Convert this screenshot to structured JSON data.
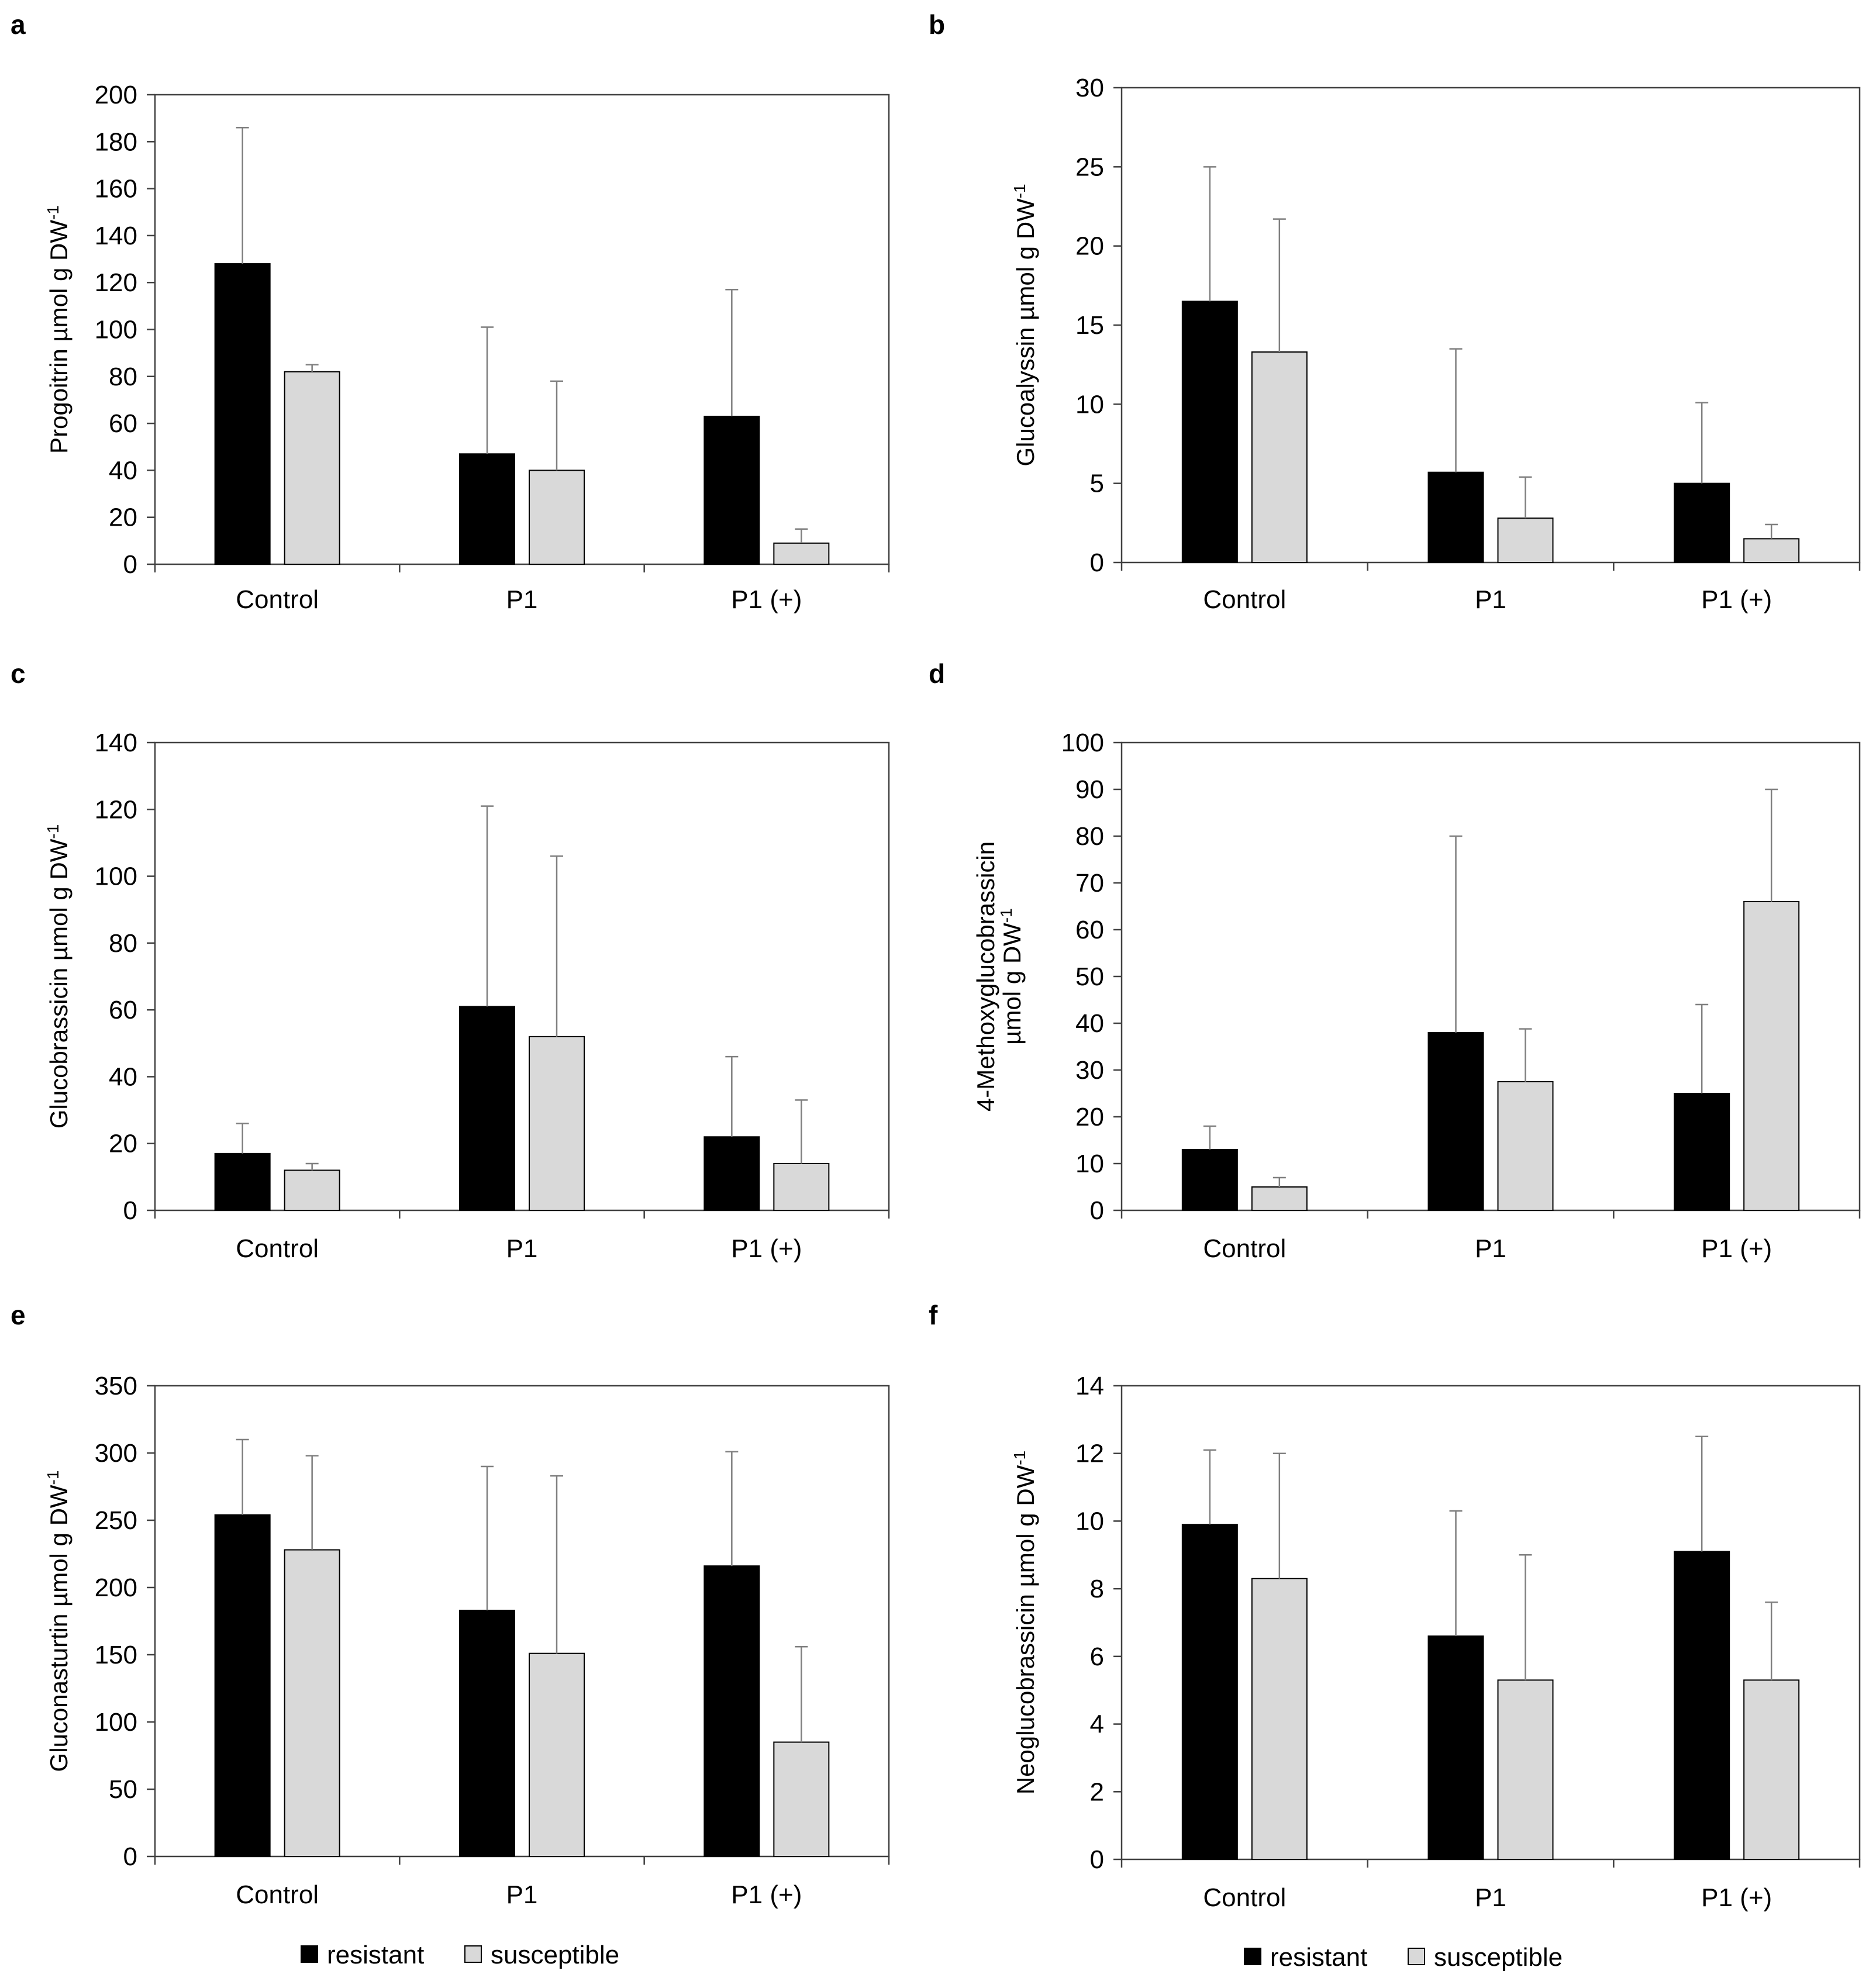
{
  "legend": {
    "items": [
      "resistant",
      "susceptible"
    ]
  },
  "colors": {
    "resistant": "#000000",
    "susceptible": "#d9d9d9",
    "axis": "#404040",
    "error_bar": "#7f7f7f"
  },
  "chart_data": [
    {
      "type": "bar",
      "panel": "a",
      "categories": [
        "Control",
        "P1",
        "P1 (+)"
      ],
      "series": [
        {
          "name": "resistant",
          "values": [
            128,
            47,
            63
          ],
          "errors": [
            58,
            54,
            54
          ]
        },
        {
          "name": "susceptible",
          "values": [
            82,
            40,
            9
          ],
          "errors": [
            3,
            38,
            6
          ]
        }
      ],
      "ylabel": "Progoitrin µmol g DW",
      "ylabel_sup": "-1",
      "ylim": [
        0,
        200
      ],
      "yticks": [
        0,
        20,
        40,
        60,
        80,
        100,
        120,
        140,
        160,
        180,
        200
      ]
    },
    {
      "type": "bar",
      "panel": "b",
      "categories": [
        "Control",
        "P1",
        "P1 (+)"
      ],
      "series": [
        {
          "name": "resistant",
          "values": [
            16.5,
            5.7,
            5.0
          ],
          "errors": [
            8.5,
            7.8,
            5.1
          ]
        },
        {
          "name": "susceptible",
          "values": [
            13.3,
            2.8,
            1.5
          ],
          "errors": [
            8.4,
            2.6,
            0.9
          ]
        }
      ],
      "ylabel": "Glucoalyssin µmol g DW",
      "ylabel_sup": "-1",
      "ylim": [
        0,
        30
      ],
      "yticks": [
        0,
        5,
        10,
        15,
        20,
        25,
        30
      ]
    },
    {
      "type": "bar",
      "panel": "c",
      "categories": [
        "Control",
        "P1",
        "P1 (+)"
      ],
      "series": [
        {
          "name": "resistant",
          "values": [
            17,
            61,
            22
          ],
          "errors": [
            9,
            60,
            24
          ]
        },
        {
          "name": "susceptible",
          "values": [
            12,
            52,
            14
          ],
          "errors": [
            2,
            54,
            19
          ]
        }
      ],
      "ylabel": "Glucobrassicin µmol g DW",
      "ylabel_sup": "-1",
      "ylim": [
        0,
        140
      ],
      "yticks": [
        0,
        20,
        40,
        60,
        80,
        100,
        120,
        140
      ]
    },
    {
      "type": "bar",
      "panel": "d",
      "categories": [
        "Control",
        "P1",
        "P1 (+)"
      ],
      "series": [
        {
          "name": "resistant",
          "values": [
            13,
            38,
            25
          ],
          "errors": [
            5,
            42,
            19
          ]
        },
        {
          "name": "susceptible",
          "values": [
            5,
            27.5,
            66
          ],
          "errors": [
            2,
            11.3,
            24
          ]
        }
      ],
      "ylabel": "4-Methoxyglucobrassicin",
      "ylabel2": "µmol g DW",
      "ylabel_sup": "-1",
      "ylim": [
        0,
        100
      ],
      "yticks": [
        0,
        10,
        20,
        30,
        40,
        50,
        60,
        70,
        80,
        90,
        100
      ]
    },
    {
      "type": "bar",
      "panel": "e",
      "categories": [
        "Control",
        "P1",
        "P1 (+)"
      ],
      "series": [
        {
          "name": "resistant",
          "values": [
            254,
            183,
            216
          ],
          "errors": [
            56,
            107,
            85
          ]
        },
        {
          "name": "susceptible",
          "values": [
            228,
            151,
            85
          ],
          "errors": [
            70,
            132,
            71
          ]
        }
      ],
      "ylabel": "Gluconasturtin µmol g DW",
      "ylabel_sup": "-1",
      "ylim": [
        0,
        350
      ],
      "yticks": [
        0,
        50,
        100,
        150,
        200,
        250,
        300,
        350
      ]
    },
    {
      "type": "bar",
      "panel": "f",
      "categories": [
        "Control",
        "P1",
        "P1 (+)"
      ],
      "series": [
        {
          "name": "resistant",
          "values": [
            9.9,
            6.6,
            9.1
          ],
          "errors": [
            2.2,
            3.7,
            3.4
          ]
        },
        {
          "name": "susceptible",
          "values": [
            8.3,
            5.3,
            5.3
          ],
          "errors": [
            3.7,
            3.7,
            2.3
          ]
        }
      ],
      "ylabel": "Neoglucobrassicin µmol g DW",
      "ylabel_sup": "-1",
      "ylim": [
        0,
        14
      ],
      "yticks": [
        0,
        2,
        4,
        6,
        8,
        10,
        12,
        14
      ]
    }
  ]
}
